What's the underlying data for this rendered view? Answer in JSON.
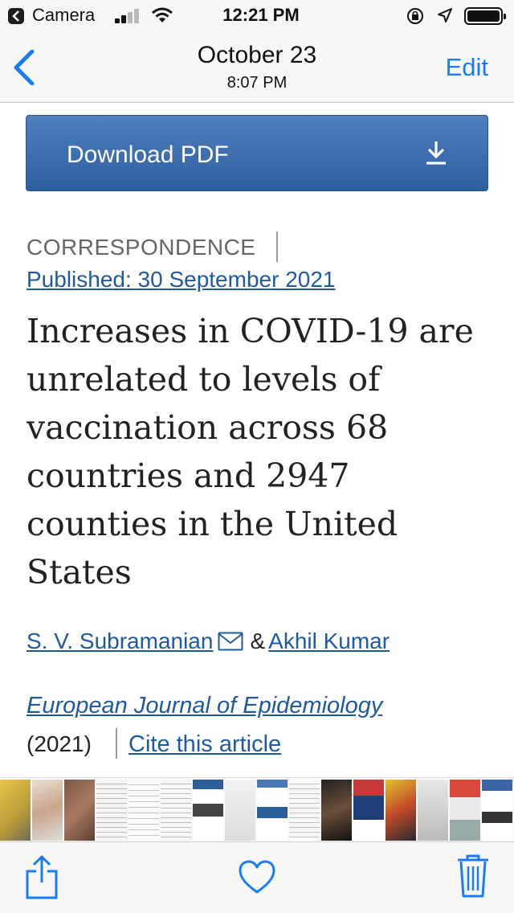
{
  "status_bar": {
    "back_app": "Camera",
    "time": "12:21 PM",
    "icons": [
      "back-to-app-icon",
      "signal-icon",
      "wifi-icon",
      "orientation-lock-icon",
      "location-icon",
      "battery-icon"
    ]
  },
  "nav": {
    "date": "October 23",
    "time": "8:07 PM",
    "edit_label": "Edit",
    "back_icon": "chevron-left-icon"
  },
  "article": {
    "download_label": "Download PDF",
    "download_icon": "download-icon",
    "kicker": "CORRESPONDENCE",
    "published": "Published: 30 September 2021",
    "title": "Increases in COVID-19 are unrelated to levels of vaccination across 68 countries and 2947 counties in the United States",
    "authors": [
      "S. V. Subramanian",
      "Akhil Kumar"
    ],
    "author_separator": "&",
    "journal": "European Journal of Epidemiology",
    "year": "(2021)",
    "cite_label": "Cite this article"
  },
  "toolbar": {
    "icons": [
      "share-icon",
      "favorite-heart-icon",
      "trash-icon"
    ]
  },
  "colors": {
    "ios_blue": "#1a7cf5",
    "link_blue": "#1f5aa0",
    "button_top": "#4f7fbc",
    "button_bottom": "#2e5f9f",
    "bar_background": "#f7f7f7"
  }
}
